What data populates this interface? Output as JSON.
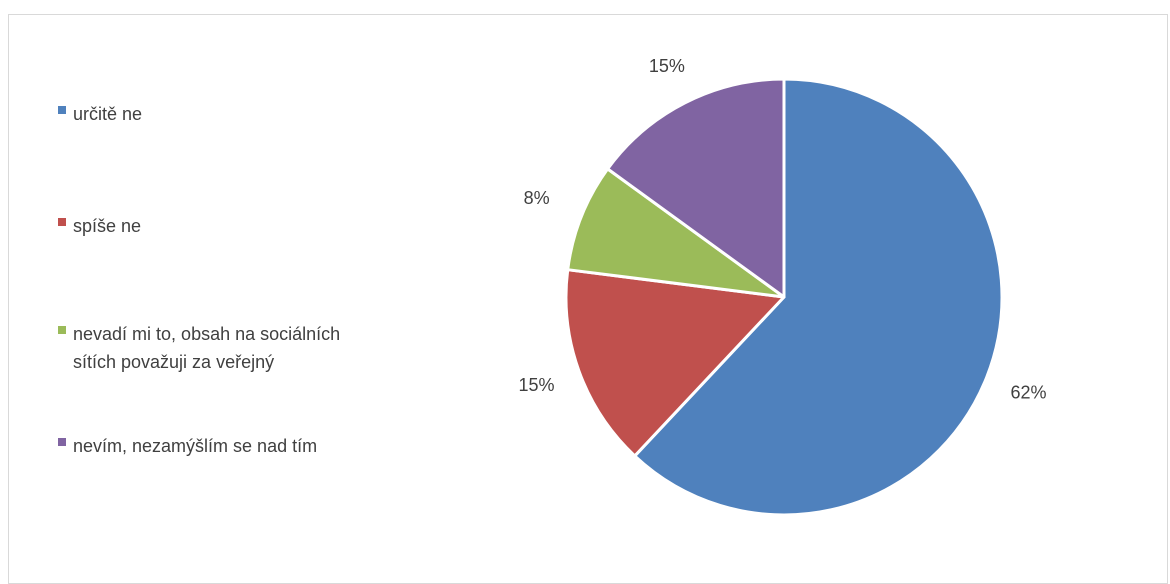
{
  "chart_data": {
    "type": "pie",
    "categories": [
      "určitě ne",
      "spíše ne",
      "nevadí mi to, obsah na sociálních sítích považuji za veřejný",
      "nevím, nezamýšlím se nad tím"
    ],
    "values": [
      62,
      15,
      8,
      15
    ],
    "data_labels": [
      "62%",
      "15%",
      "8%",
      "15%"
    ],
    "colors": [
      "#4f81bd",
      "#c0504d",
      "#9bbb59",
      "#8064a2"
    ],
    "legend_position": "left",
    "start_angle": "top, clockwise"
  }
}
